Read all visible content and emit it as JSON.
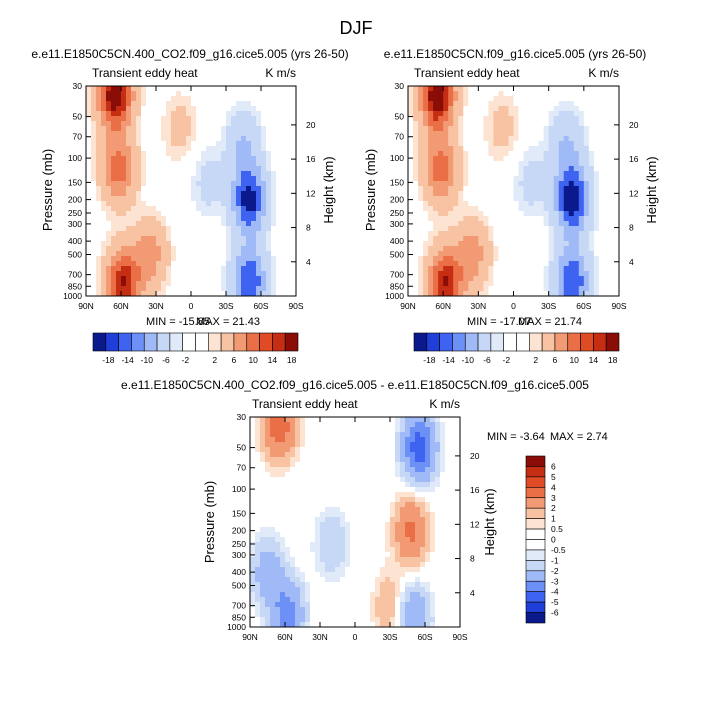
{
  "figure_title": "DJF",
  "colors": {
    "cold": [
      "#0a1a8c",
      "#1f3fd8",
      "#3e63f0",
      "#6d90f7",
      "#9fbaf7",
      "#c6d8f5",
      "#e0eaf8"
    ],
    "warm": [
      "#fde4d2",
      "#f8c3a3",
      "#f29a73",
      "#ea6e46",
      "#de4b24",
      "#c52e12",
      "#8a0d08"
    ],
    "neutral": "#ffffff"
  },
  "chart_data": [
    {
      "type": "heatmap",
      "title": "e.e11.E1850C5CN.400_CO2.f09_g16.cice5.005 (yrs 26-50)",
      "left_string": "Transient eddy heat",
      "right_string": "K m/s",
      "xlabel": "",
      "ylabel": "Pressure (mb)",
      "y2label": "Height (km)",
      "x_ticks": [
        "90N",
        "60N",
        "30N",
        "0",
        "30S",
        "60S",
        "90S"
      ],
      "y_ticks": [
        "30",
        "50",
        "70",
        "100",
        "150",
        "200",
        "250",
        "300",
        "400",
        "500",
        "700",
        "850",
        "1000"
      ],
      "y2_ticks": [
        "20",
        "16",
        "12",
        "8",
        "4"
      ],
      "xlim": [
        90,
        -90
      ],
      "ylim": [
        1000,
        30
      ],
      "min_label": "MIN = -15.85",
      "max_label": "MAX = 21.43",
      "min": -15.85,
      "max": 21.43,
      "colorbar_labels": [
        "-18",
        "-14",
        "-10",
        "-6",
        "-2",
        "2",
        "6",
        "10",
        "14",
        "18"
      ],
      "colorbar_levels": [
        -18,
        -14,
        -10,
        -6,
        -2,
        2,
        6,
        10,
        14,
        18
      ],
      "features": [
        {
          "lat": 65,
          "plev": 35,
          "value": 21.4
        },
        {
          "lat": 62,
          "plev": 120,
          "value": 12
        },
        {
          "lat": 58,
          "plev": 800,
          "value": 18
        },
        {
          "lat": 35,
          "plev": 500,
          "value": 8
        },
        {
          "lat": 10,
          "plev": 60,
          "value": 3
        },
        {
          "lat": -50,
          "plev": 200,
          "value": -15.85
        },
        {
          "lat": -50,
          "plev": 780,
          "value": -14
        },
        {
          "lat": -45,
          "plev": 80,
          "value": -6
        },
        {
          "lat": -15,
          "plev": 150,
          "value": -3
        }
      ]
    },
    {
      "type": "heatmap",
      "title": "e.e11.E1850C5CN.f09_g16.cice5.005 (yrs 26-50)",
      "left_string": "Transient eddy heat",
      "right_string": "K m/s",
      "xlabel": "",
      "ylabel": "Pressure (mb)",
      "y2label": "Height (km)",
      "x_ticks": [
        "90N",
        "60N",
        "30N",
        "0",
        "30S",
        "60S",
        "90S"
      ],
      "y_ticks": [
        "30",
        "50",
        "70",
        "100",
        "150",
        "200",
        "250",
        "300",
        "400",
        "500",
        "700",
        "850",
        "1000"
      ],
      "y2_ticks": [
        "20",
        "16",
        "12",
        "8",
        "4"
      ],
      "xlim": [
        90,
        -90
      ],
      "ylim": [
        1000,
        30
      ],
      "min_label": "MIN = -17.07",
      "max_label": "MAX = 21.74",
      "min": -17.07,
      "max": 21.74,
      "colorbar_labels": [
        "-18",
        "-14",
        "-10",
        "-6",
        "-2",
        "2",
        "6",
        "10",
        "14",
        "18"
      ],
      "colorbar_levels": [
        -18,
        -14,
        -10,
        -6,
        -2,
        2,
        6,
        10,
        14,
        18
      ],
      "features": [
        {
          "lat": 65,
          "plev": 35,
          "value": 21.7
        },
        {
          "lat": 62,
          "plev": 120,
          "value": 12
        },
        {
          "lat": 58,
          "plev": 800,
          "value": 18
        },
        {
          "lat": 35,
          "plev": 500,
          "value": 8
        },
        {
          "lat": 10,
          "plev": 60,
          "value": 3
        },
        {
          "lat": -50,
          "plev": 200,
          "value": -17.07
        },
        {
          "lat": -50,
          "plev": 780,
          "value": -14
        },
        {
          "lat": -45,
          "plev": 80,
          "value": -6
        },
        {
          "lat": -15,
          "plev": 150,
          "value": -3
        }
      ]
    },
    {
      "type": "heatmap",
      "title": "e.e11.E1850C5CN.400_CO2.f09_g16.cice5.005 - e.e11.E1850C5CN.f09_g16.cice5.005",
      "left_string": "Transient eddy heat",
      "right_string": "K m/s",
      "xlabel": "",
      "ylabel": "Pressure (mb)",
      "y2label": "Height (km)",
      "x_ticks": [
        "90N",
        "60N",
        "30N",
        "0",
        "30S",
        "60S",
        "90S"
      ],
      "y_ticks": [
        "30",
        "50",
        "70",
        "100",
        "150",
        "200",
        "250",
        "300",
        "400",
        "500",
        "700",
        "850",
        "1000"
      ],
      "y2_ticks": [
        "20",
        "16",
        "12",
        "8",
        "4"
      ],
      "xlim": [
        90,
        -90
      ],
      "ylim": [
        1000,
        30
      ],
      "min_label": "MIN = -3.64",
      "max_label": "MAX =  2.74",
      "min": -3.64,
      "max": 2.74,
      "colorbar_labels": [
        "6",
        "5",
        "4",
        "3",
        "2",
        "1",
        "0.5",
        "0",
        "-0.5",
        "-1",
        "-2",
        "-3",
        "-4",
        "-5",
        "-6"
      ],
      "colorbar_levels": [
        6,
        5,
        4,
        3,
        2,
        1,
        0.5,
        0,
        -0.5,
        -1,
        -2,
        -3,
        -4,
        -5,
        -6
      ],
      "features": [
        {
          "lat": 65,
          "plev": 35,
          "value": 2.7
        },
        {
          "lat": 58,
          "plev": 800,
          "value": -2.5
        },
        {
          "lat": 75,
          "plev": 400,
          "value": -1.5
        },
        {
          "lat": -48,
          "plev": 200,
          "value": 2.2
        },
        {
          "lat": -55,
          "plev": 50,
          "value": -3.6
        },
        {
          "lat": -50,
          "plev": 850,
          "value": -2
        },
        {
          "lat": 20,
          "plev": 250,
          "value": -1
        },
        {
          "lat": -30,
          "plev": 700,
          "value": 1
        }
      ]
    }
  ]
}
